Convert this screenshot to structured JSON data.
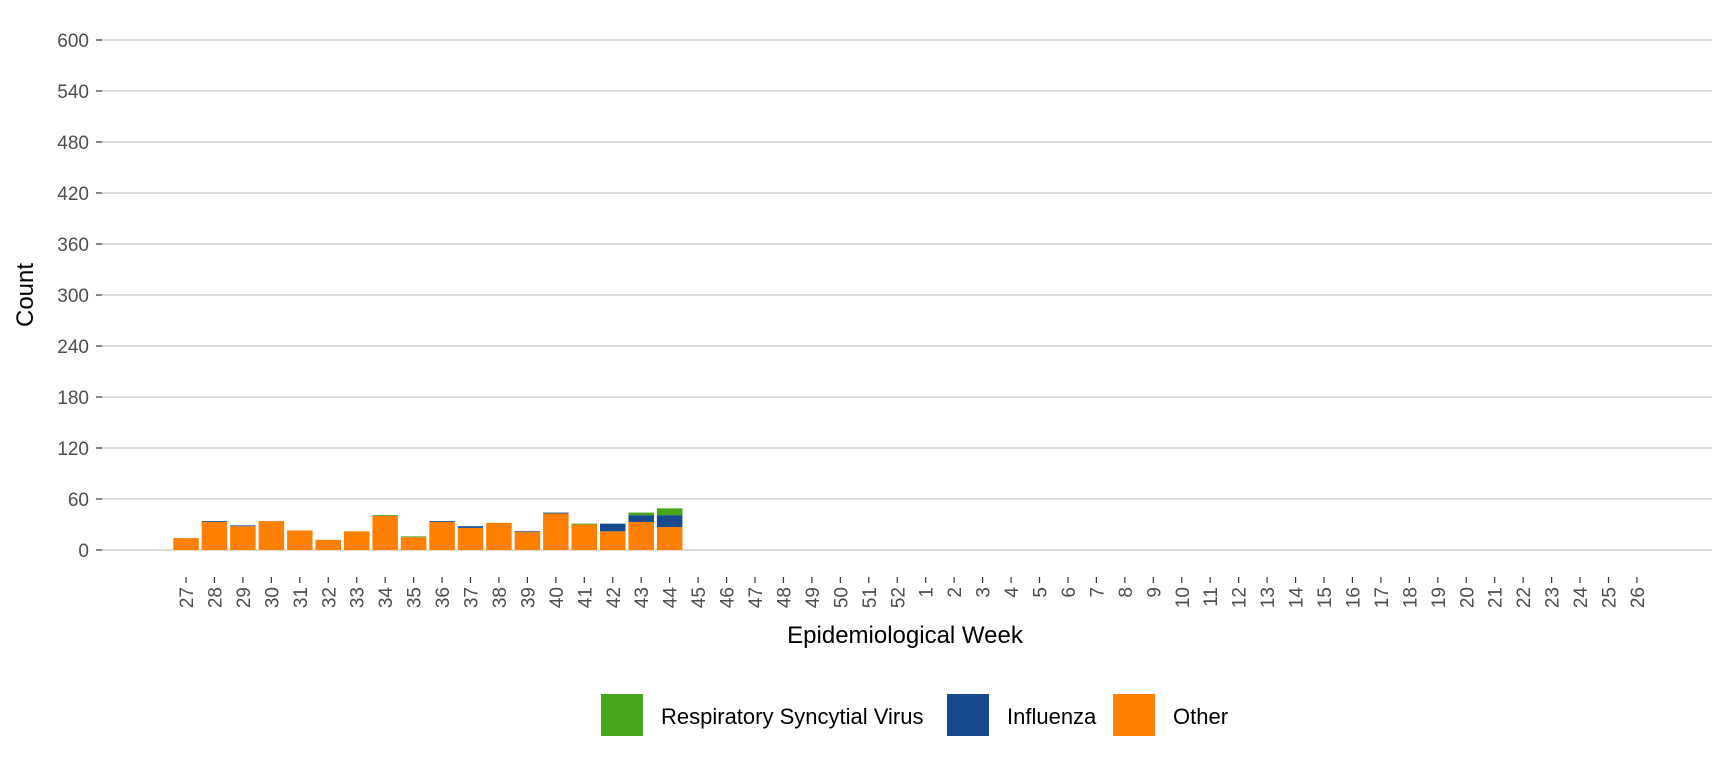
{
  "chart_data": {
    "type": "bar",
    "stacked": true,
    "xlabel": "Epidemiological Week",
    "ylabel": "Count",
    "ylim": [
      0,
      600
    ],
    "yticks": [
      0,
      60,
      120,
      180,
      240,
      300,
      360,
      420,
      480,
      540,
      600
    ],
    "grid": true,
    "legend_position": "bottom",
    "categories": [
      "27",
      "28",
      "29",
      "30",
      "31",
      "32",
      "33",
      "34",
      "35",
      "36",
      "37",
      "38",
      "39",
      "40",
      "41",
      "42",
      "43",
      "44",
      "45",
      "46",
      "47",
      "48",
      "49",
      "50",
      "51",
      "52",
      "1",
      "2",
      "3",
      "4",
      "5",
      "6",
      "7",
      "8",
      "9",
      "10",
      "11",
      "12",
      "13",
      "14",
      "15",
      "16",
      "17",
      "18",
      "19",
      "20",
      "21",
      "22",
      "23",
      "24",
      "25",
      "26"
    ],
    "series": [
      {
        "name": "Other",
        "color": "#ff7f00",
        "values": [
          14,
          33,
          28,
          34,
          23,
          12,
          22,
          40,
          15,
          33,
          26,
          32,
          21,
          43,
          30,
          22,
          33,
          27,
          0,
          0,
          0,
          0,
          0,
          0,
          0,
          0,
          0,
          0,
          0,
          0,
          0,
          0,
          0,
          0,
          0,
          0,
          0,
          0,
          0,
          0,
          0,
          0,
          0,
          0,
          0,
          0,
          0,
          0,
          0,
          0,
          0,
          0
        ]
      },
      {
        "name": "Influenza",
        "color": "#154a8e",
        "values": [
          0,
          1,
          1,
          0,
          0,
          0,
          0,
          0,
          0,
          1,
          2,
          0,
          1,
          1,
          0,
          9,
          8,
          14,
          0,
          0,
          0,
          0,
          0,
          0,
          0,
          0,
          0,
          0,
          0,
          0,
          0,
          0,
          0,
          0,
          0,
          0,
          0,
          0,
          0,
          0,
          0,
          0,
          0,
          0,
          0,
          0,
          0,
          0,
          0,
          0,
          0,
          0
        ]
      },
      {
        "name": "Respiratory Syncytial Virus",
        "color": "#46a61c",
        "values": [
          0,
          0,
          0,
          0,
          0,
          0,
          0,
          1,
          1,
          0,
          0,
          0,
          0,
          0,
          1,
          0,
          3,
          8,
          0,
          0,
          0,
          0,
          0,
          0,
          0,
          0,
          0,
          0,
          0,
          0,
          0,
          0,
          0,
          0,
          0,
          0,
          0,
          0,
          0,
          0,
          0,
          0,
          0,
          0,
          0,
          0,
          0,
          0,
          0,
          0,
          0,
          0
        ]
      }
    ],
    "legend": [
      "Respiratory Syncytial Virus",
      "Influenza",
      "Other"
    ]
  }
}
